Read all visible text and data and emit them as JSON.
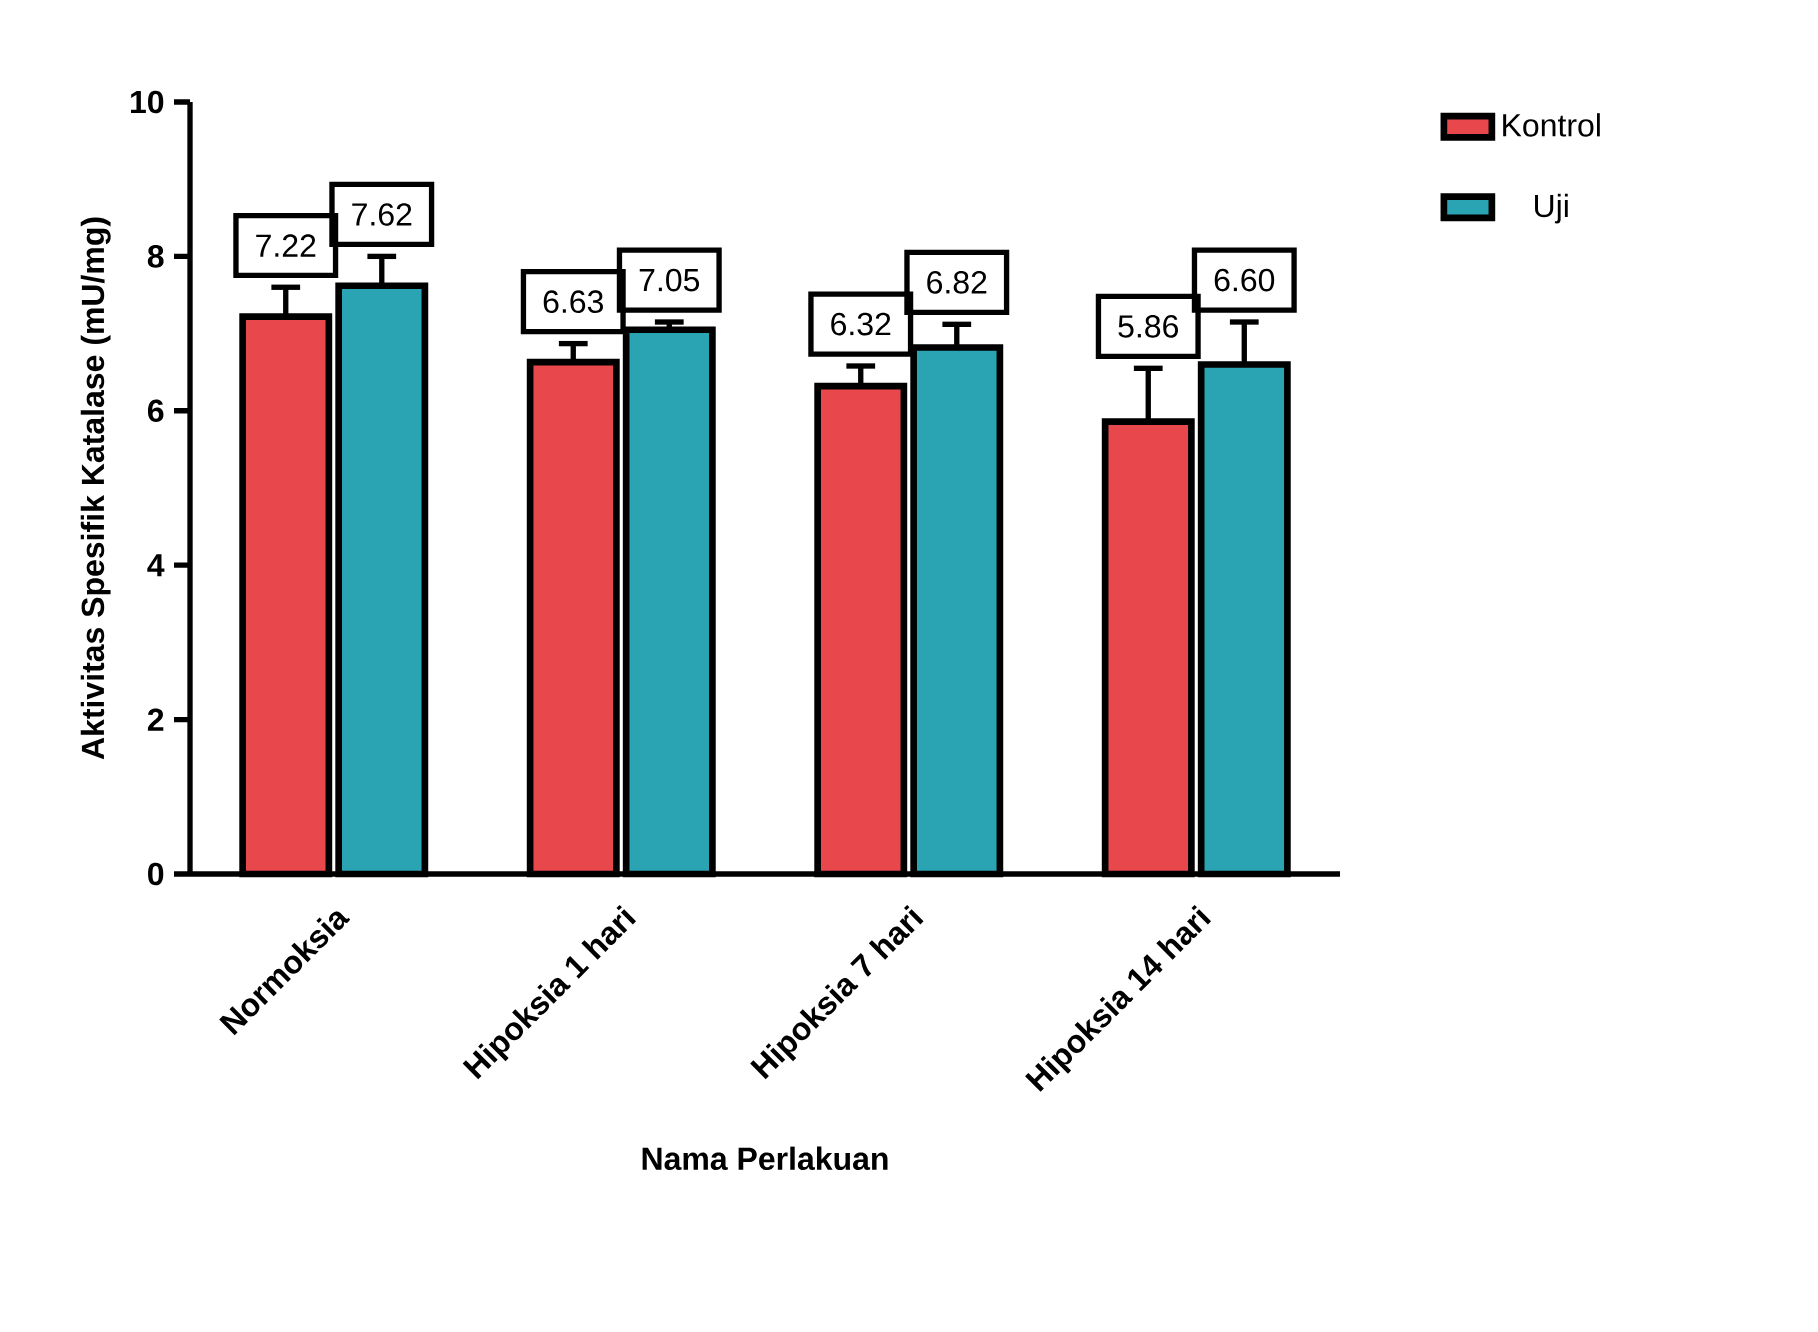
{
  "chart_data": {
    "type": "bar",
    "xlabel": "Nama Perlakuan",
    "ylabel": "Aktivitas Spesifik Katalase (mU/mg)",
    "categories": [
      "Normoksia",
      "Hipoksia 1 hari",
      "Hipoksia 7 hari",
      "Hipoksia 14 hari"
    ],
    "series": [
      {
        "name": "Kontrol",
        "color": "#e8484c",
        "values": [
          7.22,
          6.63,
          6.32,
          5.86
        ],
        "value_labels": [
          "7.22",
          "6.63",
          "6.32",
          "5.86"
        ],
        "errors": [
          [
            7.22,
            7.6
          ],
          [
            6.63,
            6.87
          ],
          [
            6.32,
            6.58
          ],
          [
            5.86,
            6.55
          ]
        ]
      },
      {
        "name": "Uji",
        "color": "#2aa3b3",
        "values": [
          7.62,
          7.05,
          6.82,
          6.6
        ],
        "value_labels": [
          "7.62",
          "7.05",
          "6.82",
          "6.60"
        ],
        "errors": [
          [
            7.62,
            8.0
          ],
          [
            7.05,
            7.15
          ],
          [
            6.82,
            7.12
          ],
          [
            6.6,
            7.15
          ]
        ]
      }
    ],
    "ylim": [
      0,
      10
    ],
    "yticks": [
      0,
      2,
      4,
      6,
      8,
      10
    ],
    "grid": false,
    "legend": "top right"
  }
}
